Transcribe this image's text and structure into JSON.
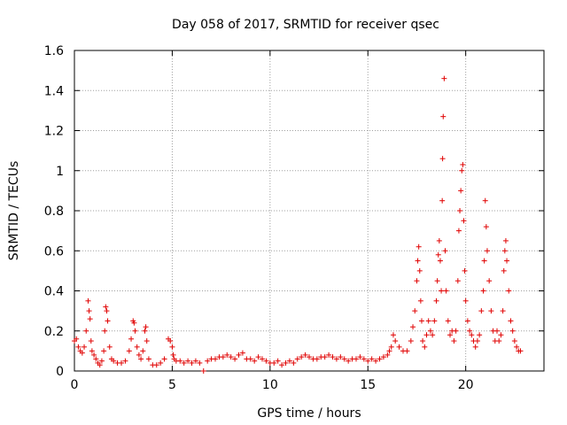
{
  "chart_data": {
    "type": "scatter",
    "title": "Day 058 of 2017, SRMTID for receiver qsec",
    "xlabel": "GPS time / hours",
    "ylabel": "SRMTID / TECUs",
    "xlim": [
      0,
      24
    ],
    "ylim": [
      0,
      1.6
    ],
    "xticks": [
      0,
      5,
      10,
      15,
      20
    ],
    "xtick_labels": [
      "0",
      "5",
      "10",
      "15",
      "20"
    ],
    "yticks": [
      0,
      0.2,
      0.4,
      0.6,
      0.8,
      1,
      1.2,
      1.4,
      1.6
    ],
    "ytick_labels": [
      "0",
      "0.2",
      "0.4",
      "0.6",
      "0.8",
      "1",
      "1.2",
      "1.4",
      "1.6"
    ],
    "grid": true,
    "marker": "plus",
    "marker_color": "#e00000",
    "series": [
      {
        "name": "qsec",
        "x": [
          0.0,
          0.1,
          0.2,
          0.3,
          0.4,
          0.5,
          0.6,
          0.7,
          0.75,
          0.8,
          0.85,
          0.9,
          1.0,
          1.1,
          1.2,
          1.3,
          1.4,
          1.5,
          1.55,
          1.6,
          1.65,
          1.7,
          1.8,
          1.9,
          2.0,
          2.2,
          2.4,
          2.6,
          2.8,
          2.9,
          3.0,
          3.05,
          3.1,
          3.2,
          3.3,
          3.4,
          3.5,
          3.6,
          3.65,
          3.7,
          3.8,
          4.0,
          4.2,
          4.4,
          4.6,
          4.8,
          4.9,
          5.0,
          5.05,
          5.1,
          5.2,
          5.4,
          5.6,
          5.8,
          6.0,
          6.2,
          6.4,
          6.6,
          6.8,
          7.0,
          7.2,
          7.4,
          7.6,
          7.8,
          8.0,
          8.2,
          8.4,
          8.6,
          8.8,
          9.0,
          9.2,
          9.4,
          9.6,
          9.8,
          10.0,
          10.2,
          10.4,
          10.6,
          10.8,
          11.0,
          11.2,
          11.4,
          11.6,
          11.8,
          12.0,
          12.2,
          12.4,
          12.6,
          12.8,
          13.0,
          13.2,
          13.4,
          13.6,
          13.8,
          14.0,
          14.2,
          14.4,
          14.6,
          14.8,
          15.0,
          15.2,
          15.4,
          15.6,
          15.8,
          16.0,
          16.1,
          16.2,
          16.3,
          16.4,
          16.6,
          16.8,
          17.0,
          17.2,
          17.3,
          17.4,
          17.5,
          17.55,
          17.6,
          17.65,
          17.7,
          17.75,
          17.8,
          17.9,
          18.0,
          18.1,
          18.2,
          18.3,
          18.4,
          18.5,
          18.55,
          18.6,
          18.65,
          18.7,
          18.75,
          18.8,
          18.82,
          18.85,
          18.9,
          18.95,
          19.0,
          19.1,
          19.2,
          19.3,
          19.4,
          19.5,
          19.6,
          19.65,
          19.7,
          19.75,
          19.8,
          19.85,
          19.9,
          19.95,
          20.0,
          20.1,
          20.2,
          20.3,
          20.4,
          20.5,
          20.6,
          20.7,
          20.8,
          20.9,
          20.95,
          21.0,
          21.05,
          21.1,
          21.2,
          21.3,
          21.4,
          21.5,
          21.6,
          21.7,
          21.8,
          21.9,
          21.95,
          22.0,
          22.05,
          22.1,
          22.2,
          22.3,
          22.4,
          22.5,
          22.6,
          22.7,
          22.8
        ],
        "y": [
          0.15,
          0.16,
          0.12,
          0.1,
          0.09,
          0.12,
          0.2,
          0.35,
          0.3,
          0.26,
          0.15,
          0.1,
          0.08,
          0.06,
          0.04,
          0.03,
          0.05,
          0.1,
          0.2,
          0.32,
          0.3,
          0.25,
          0.12,
          0.06,
          0.05,
          0.04,
          0.04,
          0.05,
          0.1,
          0.16,
          0.25,
          0.24,
          0.2,
          0.12,
          0.08,
          0.06,
          0.1,
          0.2,
          0.22,
          0.15,
          0.06,
          0.03,
          0.03,
          0.04,
          0.06,
          0.16,
          0.15,
          0.12,
          0.08,
          0.06,
          0.05,
          0.05,
          0.04,
          0.05,
          0.04,
          0.05,
          0.04,
          0.0,
          0.05,
          0.06,
          0.06,
          0.07,
          0.07,
          0.08,
          0.07,
          0.06,
          0.08,
          0.09,
          0.06,
          0.06,
          0.05,
          0.07,
          0.06,
          0.05,
          0.04,
          0.04,
          0.05,
          0.03,
          0.04,
          0.05,
          0.04,
          0.06,
          0.07,
          0.08,
          0.07,
          0.06,
          0.06,
          0.07,
          0.07,
          0.08,
          0.07,
          0.06,
          0.07,
          0.06,
          0.05,
          0.06,
          0.06,
          0.07,
          0.06,
          0.05,
          0.06,
          0.05,
          0.06,
          0.07,
          0.08,
          0.1,
          0.12,
          0.18,
          0.15,
          0.12,
          0.1,
          0.1,
          0.15,
          0.22,
          0.3,
          0.45,
          0.55,
          0.62,
          0.5,
          0.35,
          0.25,
          0.15,
          0.12,
          0.18,
          0.25,
          0.2,
          0.18,
          0.25,
          0.35,
          0.45,
          0.58,
          0.65,
          0.55,
          0.4,
          0.85,
          1.06,
          1.27,
          1.46,
          0.6,
          0.4,
          0.25,
          0.18,
          0.2,
          0.15,
          0.2,
          0.45,
          0.7,
          0.8,
          0.9,
          1.0,
          1.03,
          0.75,
          0.5,
          0.35,
          0.25,
          0.2,
          0.18,
          0.15,
          0.12,
          0.15,
          0.18,
          0.3,
          0.4,
          0.55,
          0.85,
          0.72,
          0.6,
          0.45,
          0.3,
          0.2,
          0.15,
          0.2,
          0.15,
          0.18,
          0.3,
          0.5,
          0.6,
          0.65,
          0.55,
          0.4,
          0.25,
          0.2,
          0.15,
          0.12,
          0.1,
          0.1
        ]
      }
    ]
  }
}
